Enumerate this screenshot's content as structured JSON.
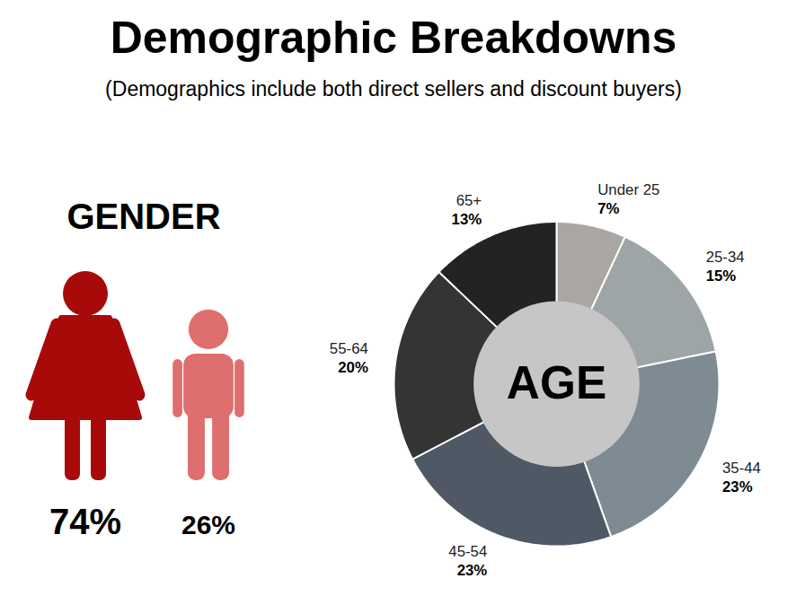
{
  "title": "Demographic Breakdowns",
  "subtitle": "(Demographics include both direct sellers and discount buyers)",
  "chart_data": [
    {
      "type": "pictogram",
      "title": "GENDER",
      "categories": [
        null,
        null
      ],
      "values": [
        74,
        26
      ],
      "value_labels": [
        "74%",
        "26%"
      ],
      "colors": [
        "#a80a0a",
        "#df6e6e"
      ],
      "data_labels": true
    },
    {
      "type": "pie",
      "title": "AGE",
      "categories": [
        "Under 25",
        "25-34",
        "35-44",
        "45-54",
        "55-64",
        "65+"
      ],
      "values": [
        7,
        15,
        23,
        23,
        20,
        13
      ],
      "value_labels": [
        "7%",
        "15%",
        "23%",
        "23%",
        "20%",
        "13%"
      ],
      "colors": [
        "#aaa6a4",
        "#9ea5a7",
        "#7f8b93",
        "#4f5966",
        "#343434",
        "#232323"
      ],
      "data_labels": true
    }
  ]
}
